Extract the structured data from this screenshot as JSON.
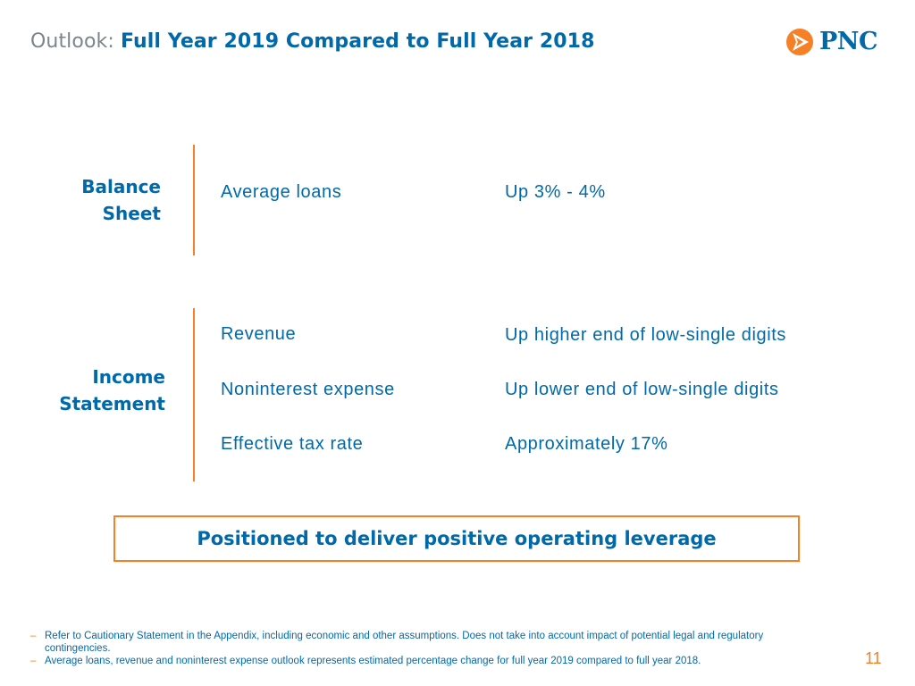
{
  "header": {
    "title_prefix": "Outlook:",
    "title_main": "Full Year 2019 Compared to Full Year 2018"
  },
  "logo": {
    "text": "PNC"
  },
  "balance_sheet": {
    "label_line1": "Balance",
    "label_line2": "Sheet",
    "rows": [
      {
        "label": "Average loans",
        "value": "Up 3% - 4%"
      }
    ]
  },
  "income_statement": {
    "label_line1": "Income",
    "label_line2": "Statement",
    "rows": [
      {
        "label": "Revenue",
        "value": "Up higher end of low-single digits"
      },
      {
        "label": "Noninterest expense",
        "value": "Up lower end of low-single digits"
      },
      {
        "label": "Effective tax rate",
        "value": "Approximately 17%"
      }
    ]
  },
  "callout": {
    "text": "Positioned to deliver positive operating leverage"
  },
  "footnotes": [
    {
      "dash": "–",
      "text": "Refer to Cautionary Statement in the Appendix, including economic and other assumptions. Does not take into account impact of potential legal and regulatory contingencies."
    },
    {
      "dash": "–",
      "text": "Average loans, revenue and noninterest expense outlook represents estimated percentage change for full year 2019 compared to full year 2018."
    }
  ],
  "page_number": "11",
  "colors": {
    "brand_blue": "#0069aa",
    "accent_orange": "#f58025",
    "gray": "#7b868c"
  }
}
